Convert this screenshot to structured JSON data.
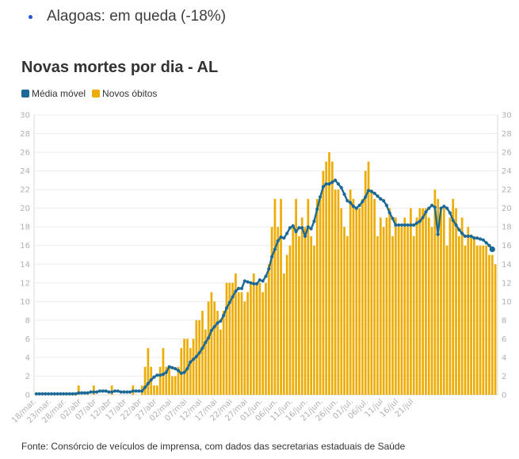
{
  "header": {
    "bullet_text": "Alagoas: em queda (-18%)"
  },
  "chart_data": {
    "type": "bar",
    "title": "Novas mortes por dia - AL",
    "legend": [
      {
        "name": "Média móvel",
        "color": "#1d6996",
        "kind": "line"
      },
      {
        "name": "Novos óbitos",
        "color": "#edad08",
        "kind": "bar"
      }
    ],
    "ylim": [
      0,
      30
    ],
    "yticks": [
      0,
      2,
      4,
      6,
      8,
      10,
      12,
      14,
      16,
      18,
      20,
      22,
      24,
      26,
      28,
      30
    ],
    "xtick_labels": [
      "18/mar.",
      "23/mar.",
      "28/mar.",
      "02/abr",
      "07/abr",
      "12/abr",
      "17/abr",
      "22/abr",
      "27/abr",
      "02/mai",
      "07/mai",
      "12/mai",
      "17/mai",
      "22/mai",
      "27/mai",
      "01/jun.",
      "06/jun.",
      "11/jun.",
      "16/jun.",
      "21/jun.",
      "26/jun.",
      "01/jul.",
      "06/jul.",
      "11/jul",
      "16/jul",
      "21/jul"
    ],
    "start_date": "2020-03-18",
    "grid": true,
    "legend_position": "top-left",
    "series": [
      {
        "name": "Novos óbitos",
        "type": "bar",
        "color": "#edad08",
        "values": [
          0,
          0,
          0,
          0,
          0,
          0,
          0,
          0,
          0,
          0,
          0,
          0,
          0,
          0,
          1,
          0,
          0,
          0,
          0,
          1,
          0,
          0,
          0,
          0,
          0,
          1,
          0,
          0,
          0,
          0,
          0,
          0,
          1,
          0,
          0,
          1,
          3,
          5,
          3,
          1,
          1,
          3,
          5,
          3,
          3,
          2,
          2,
          3,
          5,
          6,
          6,
          5,
          6,
          8,
          8,
          9,
          7,
          10,
          11,
          10,
          9,
          7,
          9,
          12,
          12,
          12,
          13,
          11,
          11,
          10,
          11,
          12,
          13,
          12,
          12,
          11,
          12,
          14,
          18,
          21,
          18,
          21,
          13,
          15,
          16,
          18,
          21,
          17,
          19,
          18,
          21,
          17,
          16,
          21,
          21,
          24,
          25,
          26,
          25,
          22,
          22,
          20,
          18,
          17,
          22,
          21,
          20,
          20,
          21,
          24,
          25,
          22,
          21,
          17,
          19,
          18,
          19,
          20,
          17,
          19,
          18,
          18,
          19,
          18,
          20,
          17,
          19,
          20,
          20,
          20,
          19,
          18,
          22,
          21,
          20,
          20,
          16,
          19,
          21,
          20,
          17,
          19,
          16,
          18,
          17,
          17,
          16,
          16,
          16,
          16,
          15,
          15,
          14
        ]
      },
      {
        "name": "Média móvel",
        "type": "line",
        "color": "#1d6996",
        "values": [
          0.1,
          0.1,
          0.1,
          0.1,
          0.1,
          0.1,
          0.1,
          0.1,
          0.1,
          0.1,
          0.1,
          0.1,
          0.1,
          0.1,
          0.2,
          0.2,
          0.2,
          0.2,
          0.3,
          0.3,
          0.3,
          0.4,
          0.4,
          0.4,
          0.3,
          0.3,
          0.4,
          0.4,
          0.3,
          0.3,
          0.3,
          0.3,
          0.4,
          0.4,
          0.4,
          0.4,
          0.8,
          1.2,
          1.6,
          1.9,
          2.1,
          2.1,
          2.2,
          2.4,
          3.0,
          2.9,
          2.8,
          2.6,
          2.3,
          2.4,
          2.8,
          3.5,
          3.8,
          4.1,
          4.5,
          5.0,
          5.6,
          6.1,
          6.9,
          7.3,
          7.7,
          7.9,
          8.5,
          9.3,
          9.9,
          10.5,
          11.1,
          11.4,
          11.4,
          12.2,
          12.1,
          12.0,
          11.9,
          11.9,
          12.3,
          12.2,
          12.7,
          13.5,
          14.8,
          15.6,
          16.5,
          16.9,
          16.8,
          17.3,
          17.9,
          18.1,
          17.5,
          17.9,
          17.9,
          17.0,
          18.0,
          17.8,
          18.6,
          19.9,
          21.2,
          22.3,
          22.6,
          22.6,
          22.8,
          23.0,
          22.6,
          22.2,
          21.5,
          20.8,
          20.6,
          20.2,
          20.0,
          20.3,
          20.7,
          21.2,
          21.9,
          21.8,
          21.6,
          21.3,
          21.0,
          20.8,
          20.3,
          19.5,
          18.9,
          18.2,
          18.2,
          18.2,
          18.2,
          18.2,
          18.2,
          18.2,
          18.4,
          18.6,
          19.0,
          19.6,
          20.0,
          20.3,
          20.1,
          17.2,
          20.0,
          20.2,
          20.0,
          19.5,
          18.7,
          18.2,
          17.7,
          17.3,
          17.0,
          17.0,
          17.0,
          16.8,
          16.8,
          16.7,
          16.6,
          16.3,
          16.0,
          15.6
        ]
      }
    ]
  },
  "footer": {
    "source": "Fonte: Consórcio de veículos de imprensa, com dados das secretarias estaduais de Saúde"
  }
}
